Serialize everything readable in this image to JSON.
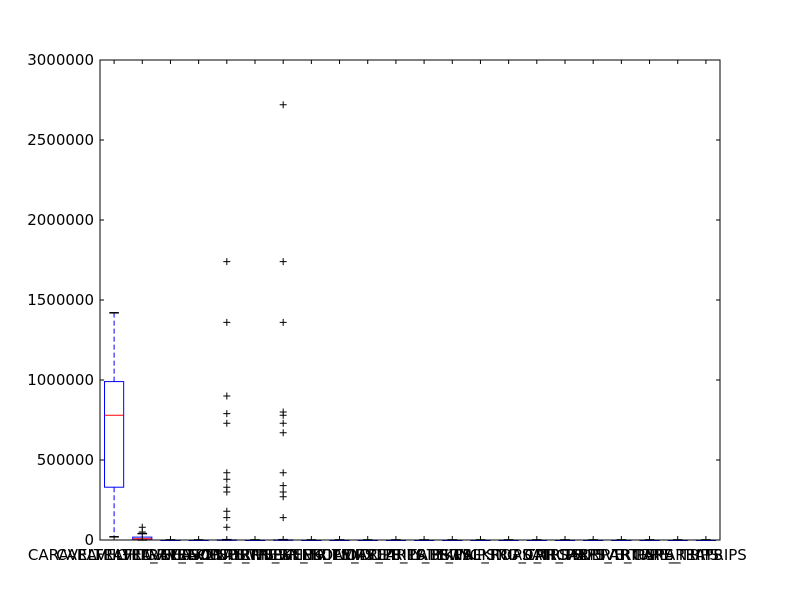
{
  "chart_data": {
    "type": "box",
    "ylim": [
      0,
      3000000
    ],
    "yticks": [
      0,
      500000,
      1000000,
      1500000,
      2000000,
      2500000,
      3000000
    ],
    "ytick_labels": [
      "0",
      "500000",
      "1000000",
      "1500000",
      "2000000",
      "2500000",
      "3000000"
    ],
    "xtick_labels": [
      "CARAVELTRAVEL_TRIPS",
      "CARAVELTRAVEL_TRIPS",
      "FLIGHTRAVEL_TRIPS",
      "FLIGHTRAVEL_TRIPS",
      "SEASONAL_TRIPS",
      "SOUTHERN_TRIPS",
      "NORTHERN_TRIPS",
      "WEEKEND_TRIPS",
      "WEEKDAY_TRIPS",
      "HOLIDAY_TRIPS",
      "MIDDLE_TRIPS",
      "EARLY_TRIPS",
      "LATE_TRIPS",
      "BIKING_TRIPS",
      "WALKING_TRIPS",
      "ROAD_TRIPS",
      "CAR_TRIPS",
      "AIRCRAFT_TRIPS",
      "ARRIVE_TRIPS",
      "DEPARTURE_TRIPS",
      "CARE_TRIPS",
      "AREATRIPS"
    ],
    "boxes": [
      {
        "q1": 330000,
        "median": 780000,
        "q3": 990000,
        "whisker_low": 20000,
        "whisker_high": 1420000,
        "outliers": []
      },
      {
        "q1": 2000,
        "median": 8000,
        "q3": 18000,
        "whisker_low": 0,
        "whisker_high": 40000,
        "outliers": [
          50000,
          80000
        ]
      },
      {
        "q1": 0,
        "median": 0,
        "q3": 0,
        "whisker_low": 0,
        "whisker_high": 0,
        "outliers": []
      },
      {
        "q1": 0,
        "median": 0,
        "q3": 0,
        "whisker_low": 0,
        "whisker_high": 0,
        "outliers": []
      },
      {
        "q1": 0,
        "median": 0,
        "q3": 1000,
        "whisker_low": 0,
        "whisker_high": 2000,
        "outliers": [
          80000,
          140000,
          180000,
          300000,
          330000,
          380000,
          420000,
          730000,
          790000,
          900000,
          1360000,
          1740000
        ]
      },
      {
        "q1": 0,
        "median": 0,
        "q3": 0,
        "whisker_low": 0,
        "whisker_high": 0,
        "outliers": []
      },
      {
        "q1": 0,
        "median": 0,
        "q3": 1000,
        "whisker_low": 0,
        "whisker_high": 2000,
        "outliers": [
          140000,
          270000,
          300000,
          340000,
          420000,
          670000,
          730000,
          780000,
          800000,
          1360000,
          1740000,
          2720000
        ]
      },
      {
        "q1": 0,
        "median": 0,
        "q3": 0,
        "whisker_low": 0,
        "whisker_high": 0,
        "outliers": []
      },
      {
        "q1": 0,
        "median": 0,
        "q3": 0,
        "whisker_low": 0,
        "whisker_high": 0,
        "outliers": []
      },
      {
        "q1": 0,
        "median": 0,
        "q3": 0,
        "whisker_low": 0,
        "whisker_high": 0,
        "outliers": []
      },
      {
        "q1": 0,
        "median": 0,
        "q3": 0,
        "whisker_low": 0,
        "whisker_high": 0,
        "outliers": []
      },
      {
        "q1": 0,
        "median": 0,
        "q3": 0,
        "whisker_low": 0,
        "whisker_high": 0,
        "outliers": []
      },
      {
        "q1": 0,
        "median": 0,
        "q3": 0,
        "whisker_low": 0,
        "whisker_high": 0,
        "outliers": []
      },
      {
        "q1": 0,
        "median": 0,
        "q3": 0,
        "whisker_low": 0,
        "whisker_high": 0,
        "outliers": []
      },
      {
        "q1": 0,
        "median": 0,
        "q3": 0,
        "whisker_low": 0,
        "whisker_high": 0,
        "outliers": []
      },
      {
        "q1": 0,
        "median": 0,
        "q3": 0,
        "whisker_low": 0,
        "whisker_high": 0,
        "outliers": []
      },
      {
        "q1": 0,
        "median": 0,
        "q3": 0,
        "whisker_low": 0,
        "whisker_high": 0,
        "outliers": []
      },
      {
        "q1": 0,
        "median": 0,
        "q3": 0,
        "whisker_low": 0,
        "whisker_high": 0,
        "outliers": []
      },
      {
        "q1": 0,
        "median": 0,
        "q3": 0,
        "whisker_low": 0,
        "whisker_high": 0,
        "outliers": []
      },
      {
        "q1": 0,
        "median": 0,
        "q3": 0,
        "whisker_low": 0,
        "whisker_high": 0,
        "outliers": []
      },
      {
        "q1": 0,
        "median": 0,
        "q3": 0,
        "whisker_low": 0,
        "whisker_high": 0,
        "outliers": []
      },
      {
        "q1": 0,
        "median": 0,
        "q3": 0,
        "whisker_low": 0,
        "whisker_high": 0,
        "outliers": []
      }
    ],
    "colors": {
      "box": "#0000ff",
      "median": "#ff0000",
      "whisker": "#0000ff",
      "cap": "#000000",
      "flier": "#000000",
      "frame": "#000000"
    }
  }
}
